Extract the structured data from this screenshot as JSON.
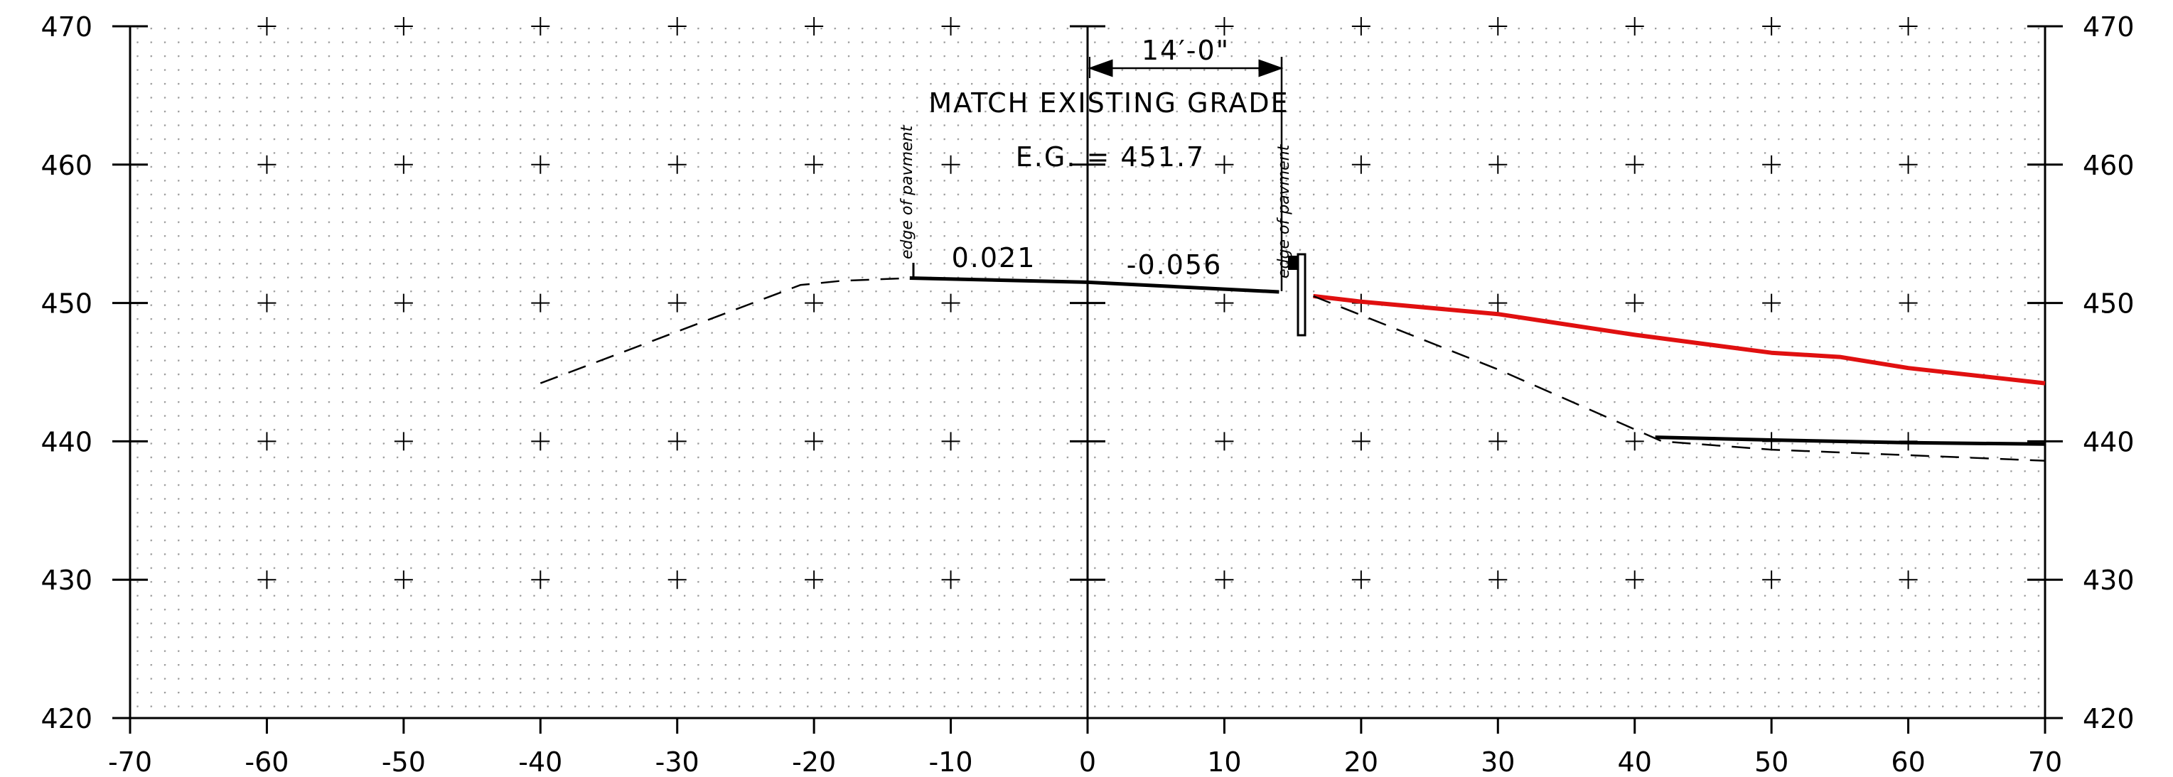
{
  "chart_data": {
    "type": "line",
    "xlim": [
      -70,
      70
    ],
    "ylim": [
      420,
      470
    ],
    "x_ticks": [
      -70,
      -60,
      -50,
      -40,
      -30,
      -20,
      -10,
      0,
      10,
      20,
      30,
      40,
      50,
      60,
      70
    ],
    "x_tick_labels": [
      "-70",
      "-60",
      "-50",
      "-40",
      "-30",
      "-20",
      "-10",
      "0",
      "10",
      "20",
      "30",
      "40",
      "50",
      "60",
      "70"
    ],
    "y_ticks": [
      420,
      430,
      440,
      450,
      460,
      470
    ],
    "y_tick_labels": [
      "420",
      "430",
      "440",
      "450",
      "460",
      "470"
    ],
    "grid": "dotted grid with + marks at 10-unit intersections",
    "series": [
      {
        "style": "dashed",
        "color": "#000000",
        "x": [
          -40,
          -21,
          -18,
          -13
        ],
        "y": [
          444.2,
          451.3,
          451.6,
          451.8
        ]
      },
      {
        "style": "solid",
        "color": "#000000",
        "x": [
          -13,
          0,
          14
        ],
        "y": [
          451.8,
          451.5,
          450.8
        ]
      },
      {
        "style": "solid",
        "color": "#e01010",
        "x": [
          16.5,
          20,
          30,
          40,
          50,
          55,
          60,
          70
        ],
        "y": [
          450.5,
          450.1,
          449.2,
          447.7,
          446.4,
          446.1,
          445.3,
          444.2
        ]
      },
      {
        "style": "dashed",
        "color": "#000000",
        "x": [
          16.5,
          30,
          42,
          50,
          60,
          70
        ],
        "y": [
          450.5,
          445.2,
          440.0,
          439.4,
          439.0,
          438.6
        ]
      },
      {
        "style": "solid",
        "color": "#000000",
        "x": [
          41.5,
          50,
          60,
          70
        ],
        "y": [
          440.3,
          440.1,
          439.9,
          439.8
        ]
      }
    ],
    "annotations": {
      "dimension": "14′-0\"",
      "match_existing": "MATCH EXISTING GRADE",
      "eg": "E.G. = 451.7",
      "slope_left": "0.021",
      "slope_right": "-0.056",
      "edge_left": "edge of pavment",
      "edge_right": "edge of pavment"
    }
  }
}
